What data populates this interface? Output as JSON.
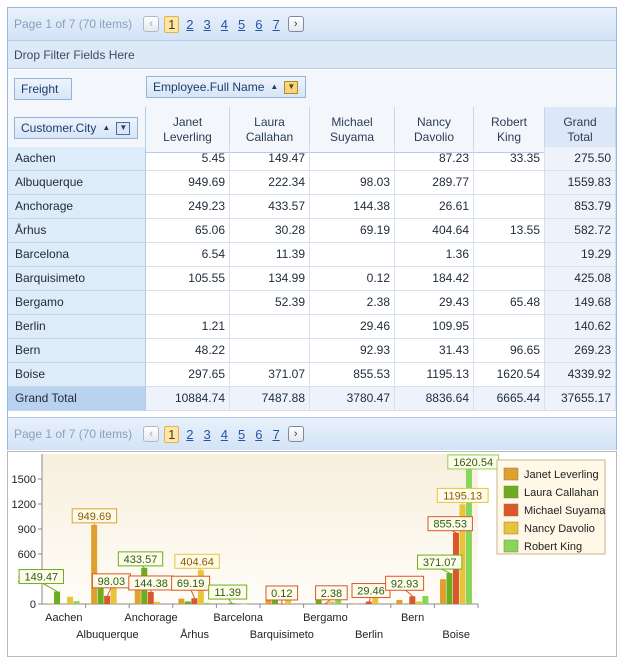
{
  "pager": {
    "info": "Page 1 of 7 (70 items)",
    "prev_icon": "chevron-left-icon",
    "next_icon": "chevron-right-icon",
    "pages": [
      "1",
      "2",
      "3",
      "4",
      "5",
      "6",
      "7"
    ],
    "current_page": "1"
  },
  "filter_area": {
    "placeholder": "Drop Filter Fields Here"
  },
  "fields": {
    "data_field": "Freight",
    "column_field": "Employee.Full Name",
    "row_field": "Customer.City"
  },
  "columns": [
    {
      "line1": "Janet",
      "line2": "Leverling"
    },
    {
      "line1": "Laura",
      "line2": "Callahan"
    },
    {
      "line1": "Michael",
      "line2": "Suyama"
    },
    {
      "line1": "Nancy",
      "line2": "Davolio"
    },
    {
      "line1": "Robert",
      "line2": "King"
    },
    {
      "line1": "Grand",
      "line2": "Total"
    }
  ],
  "rows": [
    {
      "label": "Aachen",
      "values": [
        "5.45",
        "149.47",
        "",
        "87.23",
        "33.35",
        "275.50"
      ]
    },
    {
      "label": "Albuquerque",
      "values": [
        "949.69",
        "222.34",
        "98.03",
        "289.77",
        "",
        "1559.83"
      ]
    },
    {
      "label": "Anchorage",
      "values": [
        "249.23",
        "433.57",
        "144.38",
        "26.61",
        "",
        "853.79"
      ]
    },
    {
      "label": "Århus",
      "values": [
        "65.06",
        "30.28",
        "69.19",
        "404.64",
        "13.55",
        "582.72"
      ]
    },
    {
      "label": "Barcelona",
      "values": [
        "6.54",
        "11.39",
        "",
        "1.36",
        "",
        "19.29"
      ]
    },
    {
      "label": "Barquisimeto",
      "values": [
        "105.55",
        "134.99",
        "0.12",
        "184.42",
        "",
        "425.08"
      ]
    },
    {
      "label": "Bergamo",
      "values": [
        "",
        "52.39",
        "2.38",
        "29.43",
        "65.48",
        "149.68"
      ]
    },
    {
      "label": "Berlin",
      "values": [
        "1.21",
        "",
        "29.46",
        "109.95",
        "",
        "140.62"
      ]
    },
    {
      "label": "Bern",
      "values": [
        "48.22",
        "",
        "92.93",
        "31.43",
        "96.65",
        "269.23"
      ]
    },
    {
      "label": "Boise",
      "values": [
        "297.65",
        "371.07",
        "855.53",
        "1195.13",
        "1620.54",
        "4339.92"
      ]
    }
  ],
  "grand_total": {
    "label": "Grand Total",
    "values": [
      "10884.74",
      "7487.88",
      "3780.47",
      "8836.64",
      "6665.44",
      "37655.17"
    ]
  },
  "icons": {
    "sort_asc": "sort-ascending-icon",
    "dropdown": "dropdown-arrow-icon"
  },
  "colors": {
    "janet": "#e0a030",
    "laura": "#6aae1f",
    "michael": "#d9572b",
    "nancy": "#e8c43c",
    "robert": "#86d65a"
  },
  "chart_data": {
    "type": "bar",
    "categories": [
      "Aachen",
      "Albuquerque",
      "Anchorage",
      "Århus",
      "Barcelona",
      "Barquisimeto",
      "Bergamo",
      "Berlin",
      "Bern",
      "Boise"
    ],
    "series": [
      {
        "name": "Janet Leverling",
        "values": [
          5.45,
          949.69,
          249.23,
          65.06,
          6.54,
          105.55,
          0,
          1.21,
          48.22,
          297.65
        ]
      },
      {
        "name": "Laura Callahan",
        "values": [
          149.47,
          222.34,
          433.57,
          30.28,
          11.39,
          134.99,
          52.39,
          0,
          0,
          371.07
        ]
      },
      {
        "name": "Michael Suyama",
        "values": [
          0,
          98.03,
          144.38,
          69.19,
          0,
          0.12,
          2.38,
          29.46,
          92.93,
          855.53
        ]
      },
      {
        "name": "Nancy Davolio",
        "values": [
          87.23,
          289.77,
          26.61,
          404.64,
          1.36,
          184.42,
          29.43,
          109.95,
          31.43,
          1195.13
        ]
      },
      {
        "name": "Robert King",
        "values": [
          33.35,
          0,
          0,
          13.55,
          0,
          0,
          65.48,
          0,
          96.65,
          1620.54
        ]
      }
    ],
    "ylim": [
      0,
      1800
    ],
    "yticks": [
      0,
      300,
      600,
      900,
      1200,
      1500
    ],
    "data_labels": [
      {
        "category": "Aachen",
        "series": "Laura Callahan",
        "text": "149.47"
      },
      {
        "category": "Albuquerque",
        "series": "Janet Leverling",
        "text": "949.69"
      },
      {
        "category": "Albuquerque",
        "series": "Michael Suyama",
        "text": "98.03"
      },
      {
        "category": "Anchorage",
        "series": "Laura Callahan",
        "text": "433.57"
      },
      {
        "category": "Anchorage",
        "series": "Michael Suyama",
        "text": "144.38"
      },
      {
        "category": "Århus",
        "series": "Michael Suyama",
        "text": "69.19"
      },
      {
        "category": "Århus",
        "series": "Nancy Davolio",
        "text": "404.64"
      },
      {
        "category": "Barcelona",
        "series": "Laura Callahan",
        "text": "11.39"
      },
      {
        "category": "Barquisimeto",
        "series": "Michael Suyama",
        "text": "0.12"
      },
      {
        "category": "Bergamo",
        "series": "Michael Suyama",
        "text": "2.38"
      },
      {
        "category": "Berlin",
        "series": "Michael Suyama",
        "text": "29.46"
      },
      {
        "category": "Bern",
        "series": "Michael Suyama",
        "text": "92.93"
      },
      {
        "category": "Boise",
        "series": "Laura Callahan",
        "text": "371.07"
      },
      {
        "category": "Boise",
        "series": "Michael Suyama",
        "text": "855.53"
      },
      {
        "category": "Boise",
        "series": "Nancy Davolio",
        "text": "1195.13"
      },
      {
        "category": "Boise",
        "series": "Robert King",
        "text": "1620.54"
      }
    ],
    "grid": false,
    "legend_position": "right"
  }
}
